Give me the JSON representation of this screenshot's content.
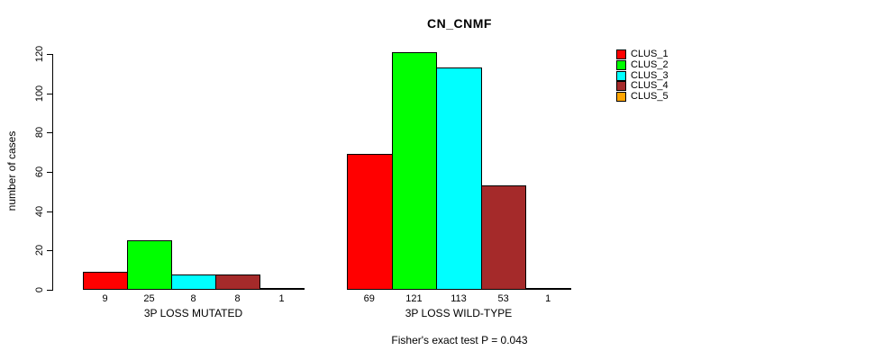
{
  "chart_data": {
    "type": "bar",
    "title": "CN_CNMF",
    "ylabel": "number of cases",
    "xlabel": "",
    "annotation": "Fisher's exact test P = 0.043",
    "categories": [
      "3P LOSS MUTATED",
      "3P LOSS WILD-TYPE"
    ],
    "series": [
      {
        "name": "CLUS_1",
        "color": "#FF0000",
        "values": [
          9,
          69
        ]
      },
      {
        "name": "CLUS_2",
        "color": "#00FF00",
        "values": [
          25,
          121
        ]
      },
      {
        "name": "CLUS_3",
        "color": "#00FFFF",
        "values": [
          8,
          113
        ]
      },
      {
        "name": "CLUS_4",
        "color": "#A52A2A",
        "values": [
          8,
          53
        ]
      },
      {
        "name": "CLUS_5",
        "color": "#FFA500",
        "values": [
          1,
          1
        ]
      }
    ],
    "yticks": [
      0,
      20,
      40,
      60,
      80,
      100,
      120
    ],
    "ylim": [
      0,
      130
    ],
    "grid": false,
    "bar_value_labels": true,
    "legend_position": "right",
    "axis_color": "#000000",
    "background_color": "#FFFFFF"
  }
}
